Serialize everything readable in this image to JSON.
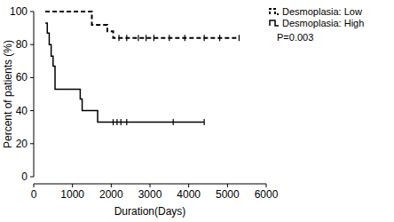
{
  "chart_data": {
    "type": "step",
    "x_label": "Duration(Days)",
    "y_label": "Percent of patients (%)",
    "annotation": "P=0.003",
    "legend": "upper right",
    "xlim": [
      0,
      6000
    ],
    "xticks": [
      0,
      1000,
      2000,
      3000,
      4000,
      5000,
      6000
    ],
    "ylim": [
      0,
      100
    ],
    "yticks": [
      0,
      20,
      40,
      60,
      80,
      100
    ],
    "series": [
      {
        "name": "Desmoplasia: Low",
        "color": "#000000",
        "line_style": "dashed",
        "x": [
          300,
          1500,
          1900,
          2050,
          5300
        ],
        "values": [
          100,
          92,
          88,
          84,
          84
        ],
        "censor_x": [
          2200,
          2400,
          2700,
          2900,
          3100,
          3500,
          3900,
          4400,
          4800,
          5300
        ],
        "censor_values": [
          84,
          84,
          84,
          84,
          84,
          84,
          84,
          84,
          84,
          84
        ]
      },
      {
        "name": "Desmoplasia: High",
        "color": "#000000",
        "line_style": "solid",
        "x": [
          300,
          350,
          400,
          450,
          500,
          550,
          1200,
          1250,
          1300,
          1650,
          4400
        ],
        "values": [
          93,
          87,
          80,
          73,
          67,
          53,
          47,
          40,
          40,
          33,
          33
        ],
        "censor_x": [
          2050,
          2150,
          2250,
          2400,
          3600,
          4400
        ],
        "censor_values": [
          33,
          33,
          33,
          33,
          33,
          33
        ]
      }
    ]
  }
}
